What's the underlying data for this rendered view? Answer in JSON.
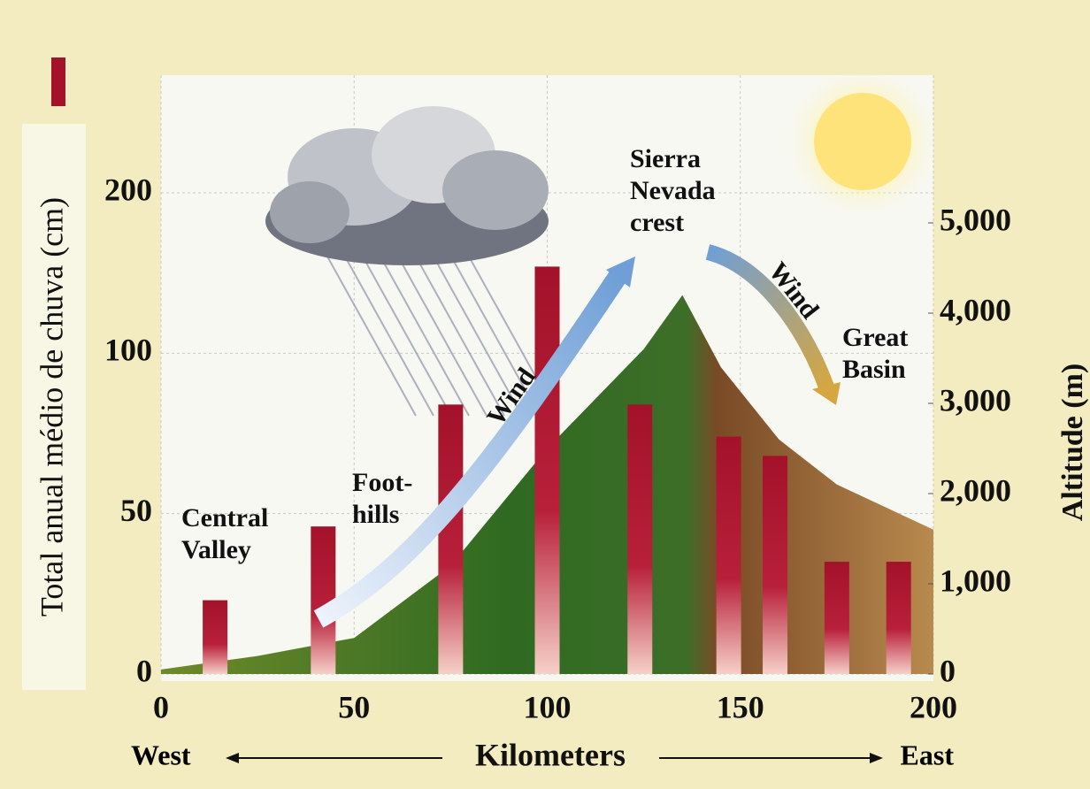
{
  "chart_data": {
    "type": "bar",
    "ylabel": "Total anual médio de chuva (cm)",
    "y2label": "Altitude (m)",
    "xlabel": "Kilometers",
    "x_left_label": "West",
    "x_right_label": "East",
    "x": [
      14,
      42,
      75,
      100,
      124,
      147,
      159,
      175,
      191
    ],
    "values": [
      23,
      46,
      84,
      154,
      84,
      74,
      68,
      35,
      35
    ],
    "color": "#a3122a",
    "xlim": [
      0,
      200
    ],
    "xticks": [
      0,
      50,
      100,
      150,
      200
    ],
    "ylim": [
      0,
      200
    ],
    "yticks": [
      0,
      50,
      100,
      200
    ],
    "y2lim": [
      0,
      5000
    ],
    "y2ticks": [
      0,
      {
        "value": 1000,
        "label": "1,000"
      },
      {
        "value": 2000,
        "label": "2,000"
      },
      {
        "value": 3000,
        "label": "3,000"
      },
      {
        "value": 4000,
        "label": "4,000"
      },
      {
        "value": 5000,
        "label": "5,000"
      }
    ],
    "terrain": {
      "axis": "y2",
      "x": [
        0,
        25,
        50,
        75,
        100,
        125,
        135,
        145,
        160,
        175,
        200
      ],
      "values": [
        50,
        200,
        400,
        1200,
        2500,
        3600,
        4200,
        3400,
        2600,
        2100,
        1600
      ]
    },
    "grid": true,
    "annotations": [
      {
        "lines": [
          "Central",
          "Valley"
        ]
      },
      {
        "lines": [
          "Foot-",
          "hills"
        ]
      },
      {
        "lines": [
          "Sierra",
          "Nevada",
          "crest"
        ]
      },
      {
        "lines": [
          "Great",
          "Basin"
        ]
      },
      {
        "lines": [
          "Wind"
        ]
      },
      {
        "lines": [
          "Wind"
        ]
      }
    ]
  }
}
